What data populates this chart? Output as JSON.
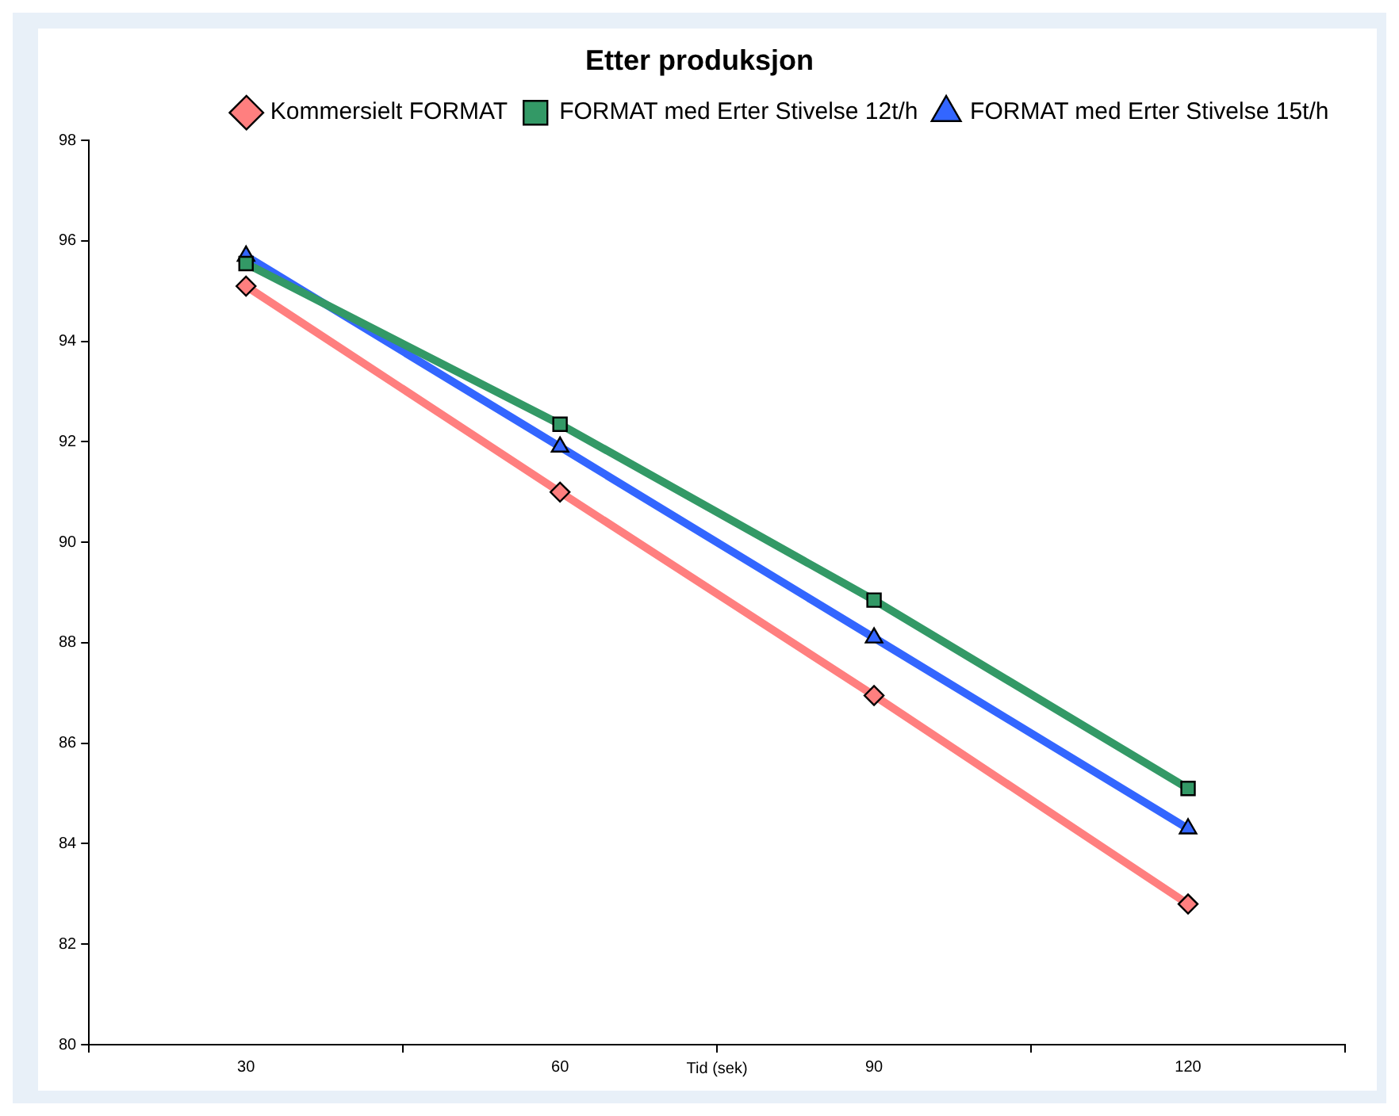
{
  "chart_data": {
    "type": "line",
    "title": "Etter produksjon",
    "xlabel": "Tid (sek)",
    "categories": [
      "30",
      "60",
      "90",
      "120"
    ],
    "series": [
      {
        "name": "Kommersielt FORMAT",
        "color": "#ff7f7f",
        "marker": "diamond",
        "values": [
          95.1,
          91.0,
          86.95,
          82.8
        ]
      },
      {
        "name": "FORMAT med Erter Stivelse 12t/h",
        "color": "#339966",
        "marker": "square",
        "values": [
          95.55,
          92.35,
          88.85,
          85.1
        ]
      },
      {
        "name": "FORMAT med Erter Stivelse 15t/h",
        "color": "#3366ff",
        "marker": "triangle",
        "values": [
          95.7,
          91.9,
          88.1,
          84.3
        ]
      }
    ],
    "ylim": [
      80,
      98
    ],
    "yticks": [
      80,
      82,
      84,
      86,
      88,
      90,
      92,
      94,
      96,
      98
    ],
    "grid": false,
    "legend": "top right",
    "line_style": "solid"
  }
}
